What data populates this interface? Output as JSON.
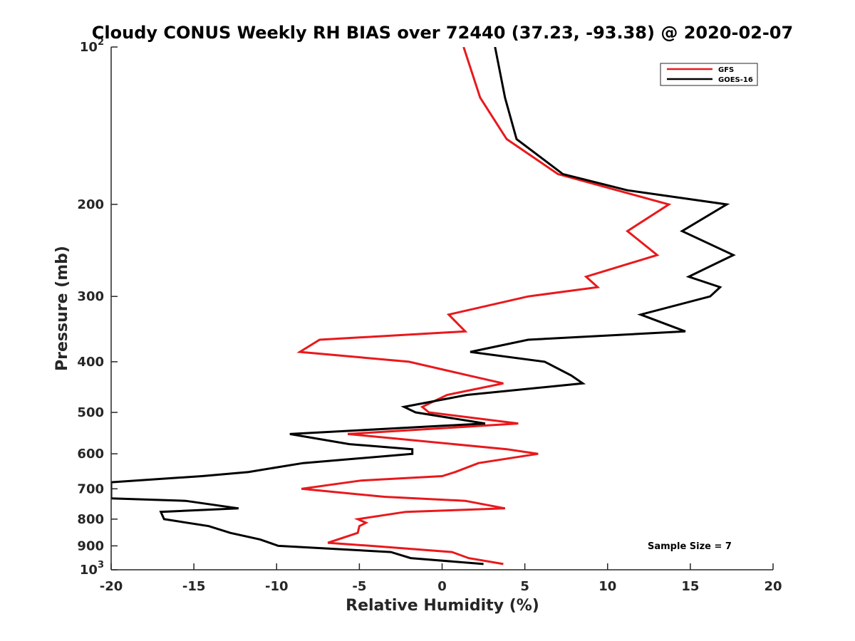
{
  "chart_data": {
    "type": "line",
    "title": "Cloudy CONUS Weekly RH BIAS over 72440 (37.23, -93.38) @ 2020-02-07",
    "xlabel": "Relative Humidity (%)",
    "ylabel": "Pressure (mb)",
    "xlim": [
      -20,
      20
    ],
    "ylim": [
      100,
      1000
    ],
    "y_scale": "log",
    "y_reversed": true,
    "grid": false,
    "legend_position": "top-right",
    "x_ticks": [
      -20,
      -15,
      -10,
      -5,
      0,
      5,
      10,
      15,
      20
    ],
    "x_tick_labels": [
      "-20",
      "-15",
      "-10",
      "-5",
      "0",
      "5",
      "10",
      "15",
      "20"
    ],
    "y_ticks": [
      100,
      200,
      300,
      400,
      500,
      600,
      700,
      800,
      900,
      1000
    ],
    "y_tick_labels": [
      {
        "base": "10",
        "exp": "2"
      },
      {
        "base": "200",
        "exp": ""
      },
      {
        "base": "300",
        "exp": ""
      },
      {
        "base": "400",
        "exp": ""
      },
      {
        "base": "500",
        "exp": ""
      },
      {
        "base": "600",
        "exp": ""
      },
      {
        "base": "700",
        "exp": ""
      },
      {
        "base": "800",
        "exp": ""
      },
      {
        "base": "900",
        "exp": ""
      },
      {
        "base": "10",
        "exp": "3"
      }
    ],
    "annotation": "Sample Size = 7",
    "series": [
      {
        "name": "GFS",
        "color": "#e8191c",
        "points": [
          {
            "x": 1.3,
            "y": 100
          },
          {
            "x": 2.3,
            "y": 125
          },
          {
            "x": 3.9,
            "y": 150
          },
          {
            "x": 7.0,
            "y": 175
          },
          {
            "x": 13.7,
            "y": 200
          },
          {
            "x": 11.2,
            "y": 225
          },
          {
            "x": 13.0,
            "y": 250
          },
          {
            "x": 8.7,
            "y": 275
          },
          {
            "x": 9.4,
            "y": 288
          },
          {
            "x": 5.2,
            "y": 300
          },
          {
            "x": 0.4,
            "y": 325
          },
          {
            "x": 1.4,
            "y": 350
          },
          {
            "x": -7.4,
            "y": 363
          },
          {
            "x": -8.6,
            "y": 383
          },
          {
            "x": -2.0,
            "y": 400
          },
          {
            "x": 1.6,
            "y": 425
          },
          {
            "x": 3.7,
            "y": 440
          },
          {
            "x": 0.3,
            "y": 463
          },
          {
            "x": -1.2,
            "y": 488
          },
          {
            "x": -0.8,
            "y": 500
          },
          {
            "x": 4.6,
            "y": 525
          },
          {
            "x": -5.7,
            "y": 550
          },
          {
            "x": 3.9,
            "y": 588
          },
          {
            "x": 5.8,
            "y": 600
          },
          {
            "x": 2.2,
            "y": 625
          },
          {
            "x": 0.8,
            "y": 650
          },
          {
            "x": 0.0,
            "y": 662
          },
          {
            "x": -4.9,
            "y": 675
          },
          {
            "x": -8.5,
            "y": 700
          },
          {
            "x": -3.5,
            "y": 725
          },
          {
            "x": 1.4,
            "y": 738
          },
          {
            "x": 3.8,
            "y": 763
          },
          {
            "x": -2.2,
            "y": 775
          },
          {
            "x": -5.1,
            "y": 800
          },
          {
            "x": -4.6,
            "y": 813
          },
          {
            "x": -5.0,
            "y": 825
          },
          {
            "x": -5.1,
            "y": 850
          },
          {
            "x": -6.9,
            "y": 888
          },
          {
            "x": -4.3,
            "y": 900
          },
          {
            "x": 0.6,
            "y": 925
          },
          {
            "x": 1.6,
            "y": 950
          },
          {
            "x": 3.7,
            "y": 975
          }
        ]
      },
      {
        "name": "GOES-16",
        "color": "#000000",
        "points": [
          {
            "x": 3.2,
            "y": 100
          },
          {
            "x": 3.8,
            "y": 125
          },
          {
            "x": 4.5,
            "y": 150
          },
          {
            "x": 7.3,
            "y": 175
          },
          {
            "x": 11.2,
            "y": 188
          },
          {
            "x": 17.2,
            "y": 200
          },
          {
            "x": 14.5,
            "y": 225
          },
          {
            "x": 17.6,
            "y": 250
          },
          {
            "x": 14.9,
            "y": 275
          },
          {
            "x": 16.8,
            "y": 288
          },
          {
            "x": 16.2,
            "y": 300
          },
          {
            "x": 12.0,
            "y": 325
          },
          {
            "x": 14.7,
            "y": 350
          },
          {
            "x": 5.2,
            "y": 363
          },
          {
            "x": 1.7,
            "y": 383
          },
          {
            "x": 6.2,
            "y": 400
          },
          {
            "x": 7.8,
            "y": 425
          },
          {
            "x": 8.5,
            "y": 440
          },
          {
            "x": 1.5,
            "y": 463
          },
          {
            "x": -2.3,
            "y": 488
          },
          {
            "x": -1.6,
            "y": 500
          },
          {
            "x": 2.6,
            "y": 525
          },
          {
            "x": -9.2,
            "y": 550
          },
          {
            "x": -5.6,
            "y": 575
          },
          {
            "x": -1.8,
            "y": 588
          },
          {
            "x": -1.8,
            "y": 600
          },
          {
            "x": -8.4,
            "y": 625
          },
          {
            "x": -11.7,
            "y": 650
          },
          {
            "x": -14.5,
            "y": 662
          },
          {
            "x": -20.0,
            "y": 680
          },
          {
            "x": -20.0,
            "y": 730
          },
          {
            "x": -15.5,
            "y": 738
          },
          {
            "x": -12.3,
            "y": 763
          },
          {
            "x": -17.0,
            "y": 775
          },
          {
            "x": -16.8,
            "y": 800
          },
          {
            "x": -14.1,
            "y": 825
          },
          {
            "x": -12.8,
            "y": 850
          },
          {
            "x": -11.0,
            "y": 875
          },
          {
            "x": -9.9,
            "y": 900
          },
          {
            "x": -3.1,
            "y": 925
          },
          {
            "x": -1.9,
            "y": 950
          },
          {
            "x": 2.5,
            "y": 975
          }
        ]
      }
    ]
  }
}
